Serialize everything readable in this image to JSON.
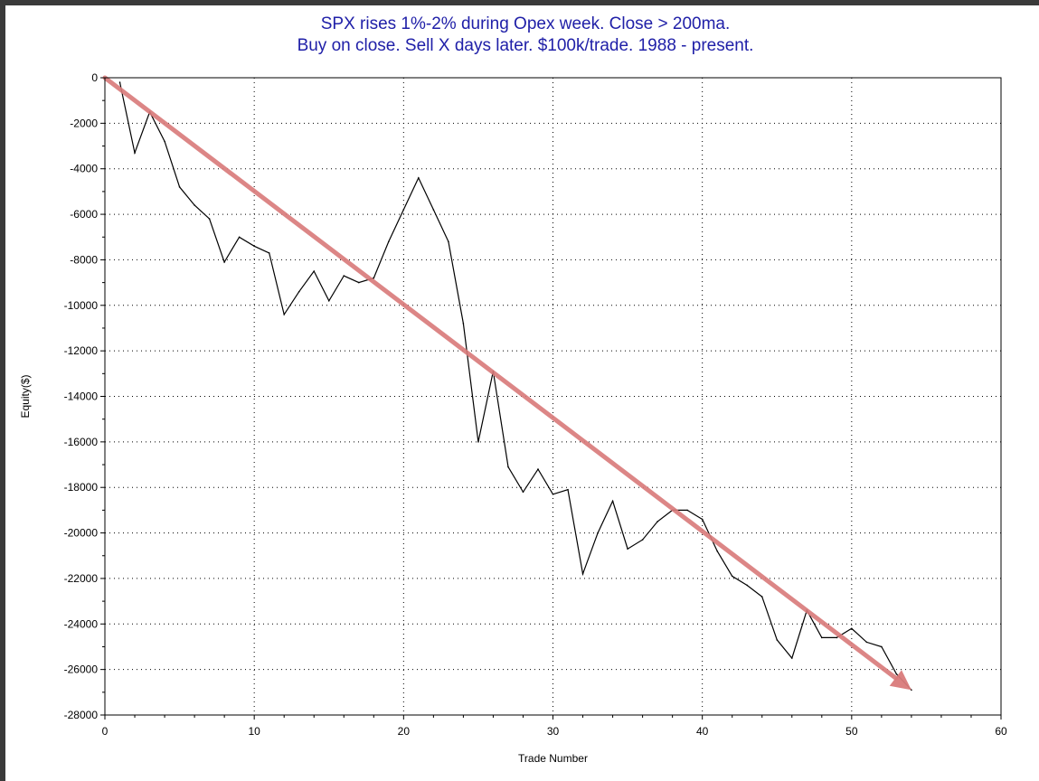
{
  "chart_data": {
    "type": "line",
    "title": "SPX rises 1%-2% during Opex week. Close > 200ma.",
    "subtitle": "Buy on close. Sell X days later. $100k/trade. 1988 - present.",
    "xlabel": "Trade Number",
    "ylabel": "Equity($)",
    "xlim": [
      0,
      60
    ],
    "ylim": [
      -28000,
      0
    ],
    "xticks": [
      0,
      10,
      20,
      30,
      40,
      50,
      60
    ],
    "yticks": [
      0,
      -2000,
      -4000,
      -6000,
      -8000,
      -10000,
      -12000,
      -14000,
      -16000,
      -18000,
      -20000,
      -22000,
      -24000,
      -26000,
      -28000
    ],
    "grid": true,
    "series": [
      {
        "values": [
          [
            1,
            -200
          ],
          [
            2,
            -3300
          ],
          [
            3,
            -1500
          ],
          [
            4,
            -2800
          ],
          [
            5,
            -4800
          ],
          [
            6,
            -5600
          ],
          [
            7,
            -6200
          ],
          [
            8,
            -8100
          ],
          [
            9,
            -7000
          ],
          [
            10,
            -7400
          ],
          [
            11,
            -7700
          ],
          [
            12,
            -10400
          ],
          [
            13,
            -9400
          ],
          [
            14,
            -8500
          ],
          [
            15,
            -9800
          ],
          [
            16,
            -8700
          ],
          [
            17,
            -9000
          ],
          [
            18,
            -8800
          ],
          [
            19,
            -7200
          ],
          [
            20,
            -5800
          ],
          [
            21,
            -4400
          ],
          [
            22,
            -5800
          ],
          [
            23,
            -7200
          ],
          [
            24,
            -10800
          ],
          [
            25,
            -16000
          ],
          [
            26,
            -12900
          ],
          [
            27,
            -17100
          ],
          [
            28,
            -18200
          ],
          [
            29,
            -17200
          ],
          [
            30,
            -18300
          ],
          [
            31,
            -18100
          ],
          [
            32,
            -21800
          ],
          [
            33,
            -20000
          ],
          [
            34,
            -18600
          ],
          [
            35,
            -20700
          ],
          [
            36,
            -20300
          ],
          [
            37,
            -19500
          ],
          [
            38,
            -19000
          ],
          [
            39,
            -19000
          ],
          [
            40,
            -19400
          ],
          [
            41,
            -20800
          ],
          [
            42,
            -21900
          ],
          [
            43,
            -22300
          ],
          [
            44,
            -22800
          ],
          [
            45,
            -24700
          ],
          [
            46,
            -25500
          ],
          [
            47,
            -23400
          ],
          [
            48,
            -24600
          ],
          [
            49,
            -24600
          ],
          [
            50,
            -24200
          ],
          [
            51,
            -24800
          ],
          [
            52,
            -25000
          ],
          [
            53,
            -26200
          ],
          [
            54,
            -26900
          ]
        ],
        "color": "#000000"
      }
    ],
    "trend_arrow": {
      "from": [
        0,
        0
      ],
      "to": [
        54,
        -26900
      ],
      "color": "#d97a7a"
    }
  }
}
